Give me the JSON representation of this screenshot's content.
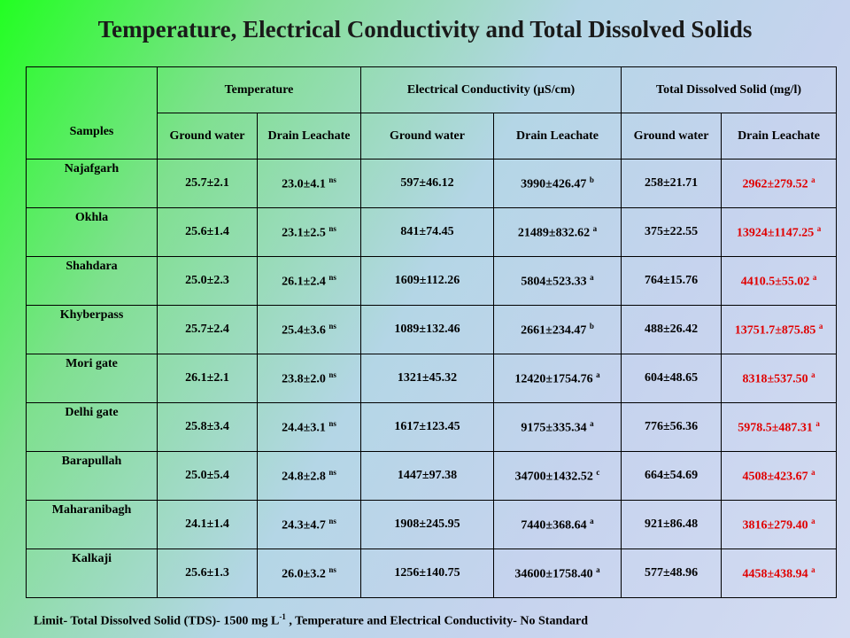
{
  "title": "Temperature, Electrical Conductivity and Total Dissolved Solids",
  "table": {
    "samples_header": "Samples",
    "group_headers": {
      "temperature": "Temperature",
      "ec": "Electrical Conductivity (µS/cm)",
      "tds": "Total Dissolved Solid (mg/l)"
    },
    "sub_headers": {
      "t_gw": "Ground water",
      "t_dl": "Drain Leachate",
      "ec_gw": "Ground water",
      "ec_dl": "Drain Leachate",
      "tds_gw": "Ground water",
      "tds_dl": "Drain Leachate"
    },
    "rows": [
      {
        "name": "Najafgarh",
        "t_gw": "25.7±2.1",
        "t_dl": "23.0±4.1",
        "t_dl_sup": "ns",
        "ec_gw": "597±46.12",
        "ec_dl": "3990±426.47",
        "ec_dl_sup": "b",
        "tds_gw": "258±21.71",
        "tds_dl": "2962±279.52",
        "tds_dl_sup": "a"
      },
      {
        "name": "Okhla",
        "t_gw": "25.6±1.4",
        "t_dl": "23.1±2.5",
        "t_dl_sup": "ns",
        "ec_gw": "841±74.45",
        "ec_dl": "21489±832.62",
        "ec_dl_sup": "a",
        "tds_gw": "375±22.55",
        "tds_dl": "13924±1147.25",
        "tds_dl_sup": "a"
      },
      {
        "name": "Shahdara",
        "t_gw": "25.0±2.3",
        "t_dl": "26.1±2.4",
        "t_dl_sup": "ns",
        "ec_gw": "1609±112.26",
        "ec_dl": "5804±523.33",
        "ec_dl_sup": "a",
        "tds_gw": "764±15.76",
        "tds_dl": "4410.5±55.02",
        "tds_dl_sup": "a"
      },
      {
        "name": "Khyberpass",
        "t_gw": "25.7±2.4",
        "t_dl": "25.4±3.6",
        "t_dl_sup": "ns",
        "ec_gw": "1089±132.46",
        "ec_dl": "2661±234.47",
        "ec_dl_sup": "b",
        "tds_gw": "488±26.42",
        "tds_dl": "13751.7±875.85",
        "tds_dl_sup": "a"
      },
      {
        "name": "Mori gate",
        "t_gw": "26.1±2.1",
        "t_dl": "23.8±2.0",
        "t_dl_sup": "ns",
        "ec_gw": "1321±45.32",
        "ec_dl": "12420±1754.76",
        "ec_dl_sup": "a",
        "tds_gw": "604±48.65",
        "tds_dl": "8318±537.50",
        "tds_dl_sup": "a"
      },
      {
        "name": "Delhi gate",
        "t_gw": "25.8±3.4",
        "t_dl": "24.4±3.1",
        "t_dl_sup": "ns",
        "ec_gw": "1617±123.45",
        "ec_dl": "9175±335.34",
        "ec_dl_sup": "a",
        "tds_gw": "776±56.36",
        "tds_dl": "5978.5±487.31",
        "tds_dl_sup": "a"
      },
      {
        "name": "Barapullah",
        "t_gw": "25.0±5.4",
        "t_dl": "24.8±2.8",
        "t_dl_sup": "ns",
        "ec_gw": "1447±97.38",
        "ec_dl": "34700±1432.52",
        "ec_dl_sup": "c",
        "tds_gw": "664±54.69",
        "tds_dl": "4508±423.67",
        "tds_dl_sup": "a"
      },
      {
        "name": "Maharanibagh",
        "t_gw": "24.1±1.4",
        "t_dl": "24.3±4.7",
        "t_dl_sup": "ns",
        "ec_gw": "1908±245.95",
        "ec_dl": "7440±368.64",
        "ec_dl_sup": "a",
        "tds_gw": "921±86.48",
        "tds_dl": "3816±279.40",
        "tds_dl_sup": "a"
      },
      {
        "name": "Kalkaji",
        "t_gw": "25.6±1.3",
        "t_dl": "26.0±3.2",
        "t_dl_sup": "ns",
        "ec_gw": "1256±140.75",
        "ec_dl": "34600±1758.40",
        "ec_dl_sup": "a",
        "tds_gw": "577±48.96",
        "tds_dl": "4458±438.94",
        "tds_dl_sup": "a"
      }
    ]
  },
  "footer": {
    "before_unit": "Limit- Total Dissolved Solid (TDS)- 1500 mg L",
    "unit_exponent": "-1",
    "after_unit": " , Temperature and Electrical Conductivity-  No Standard"
  },
  "colors": {
    "significant_value": "#e00000",
    "text": "#000000"
  }
}
